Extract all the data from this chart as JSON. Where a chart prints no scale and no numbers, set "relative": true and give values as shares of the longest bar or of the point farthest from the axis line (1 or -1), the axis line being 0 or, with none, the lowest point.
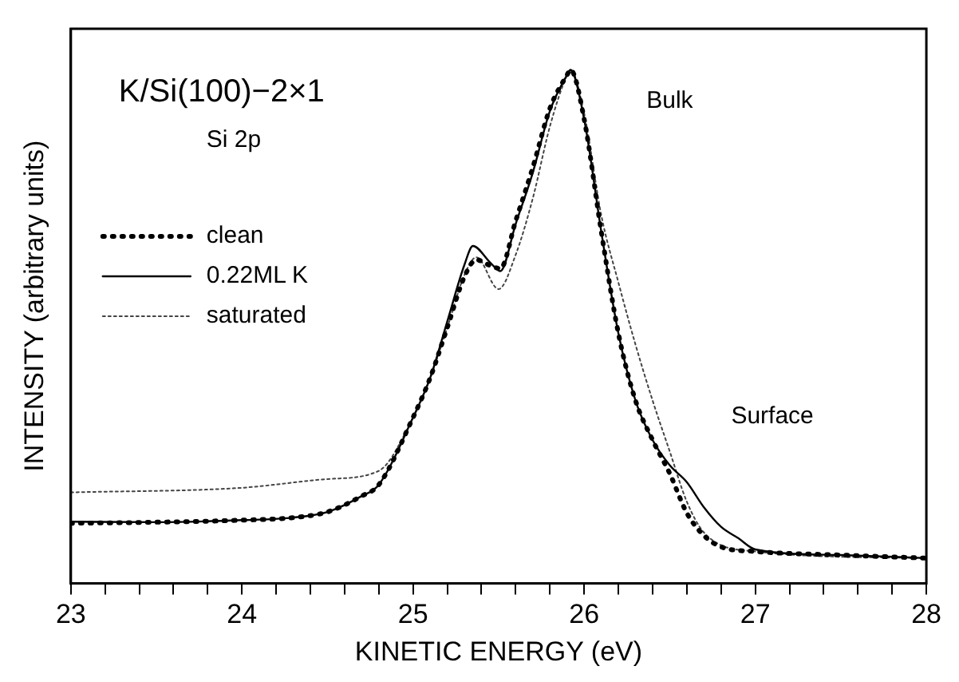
{
  "chart_data": {
    "type": "line",
    "title": "K/Si(100)−2×1",
    "subtitle": "Si 2p",
    "xlabel": "KINETIC ENERGY (eV)",
    "ylabel": "INTENSITY (arbitrary units)",
    "relative": true,
    "annotations": [
      "Bulk",
      "Surface"
    ],
    "xlim": [
      23,
      28
    ],
    "xticks": [
      23,
      {
        "value": 23.2,
        "label": null
      },
      {
        "value": 23.4,
        "label": null
      },
      {
        "value": 23.6,
        "label": null
      },
      {
        "value": 23.8,
        "label": null
      },
      24,
      {
        "value": 24.2,
        "label": null
      },
      {
        "value": 24.4,
        "label": null
      },
      {
        "value": 24.6,
        "label": null
      },
      {
        "value": 24.8,
        "label": null
      },
      25,
      {
        "value": 25.2,
        "label": null
      },
      {
        "value": 25.4,
        "label": null
      },
      {
        "value": 25.6,
        "label": null
      },
      {
        "value": 25.8,
        "label": null
      },
      26,
      {
        "value": 26.2,
        "label": null
      },
      {
        "value": 26.4,
        "label": null
      },
      {
        "value": 26.6,
        "label": null
      },
      {
        "value": 26.8,
        "label": null
      },
      27,
      {
        "value": 27.2,
        "label": null
      },
      {
        "value": 27.4,
        "label": null
      },
      {
        "value": 27.6,
        "label": null
      },
      {
        "value": 27.8,
        "label": null
      },
      28
    ],
    "grid": false,
    "legend": "top left",
    "marker": "none",
    "tick_labels": "x",
    "series": [
      {
        "name": "clean",
        "color": "#000000",
        "line_style": "dotted",
        "x": [
          23,
          23.5,
          24,
          24.3,
          24.5,
          24.7,
          24.8,
          25,
          25.1,
          25.2,
          25.3,
          25.37,
          25.45,
          25.51,
          25.6,
          25.7,
          25.8,
          25.9,
          25.92,
          26,
          26.1,
          26.2,
          26.3,
          26.4,
          26.5,
          26.6,
          26.7,
          26.8,
          27,
          27.5,
          28
        ],
        "values": [
          0.117,
          0.119,
          0.123,
          0.128,
          0.139,
          0.17,
          0.192,
          0.323,
          0.4,
          0.498,
          0.597,
          0.63,
          0.619,
          0.613,
          0.706,
          0.81,
          0.925,
          0.99,
          1,
          0.904,
          0.685,
          0.487,
          0.356,
          0.279,
          0.214,
          0.137,
          0.093,
          0.071,
          0.062,
          0.055,
          0.049
        ]
      },
      {
        "name": "0.22ML K",
        "color": "#000000",
        "line_style": "solid",
        "x": [
          23,
          23.5,
          24,
          24.3,
          24.5,
          24.7,
          24.8,
          25,
          25.1,
          25.2,
          25.3,
          25.35,
          25.45,
          25.51,
          25.6,
          25.7,
          25.8,
          25.9,
          25.92,
          26,
          26.1,
          26.2,
          26.3,
          26.4,
          26.5,
          26.6,
          26.7,
          26.8,
          26.9,
          27,
          27.5,
          28
        ],
        "values": [
          0.12,
          0.119,
          0.123,
          0.128,
          0.139,
          0.17,
          0.192,
          0.323,
          0.4,
          0.51,
          0.62,
          0.657,
          0.625,
          0.608,
          0.7,
          0.8,
          0.92,
          0.99,
          1,
          0.904,
          0.685,
          0.487,
          0.356,
          0.279,
          0.23,
          0.197,
          0.148,
          0.11,
          0.088,
          0.066,
          0.055,
          0.049
        ]
      },
      {
        "name": "saturated",
        "color": "#444444",
        "line_style": "dotted",
        "x": [
          23,
          24,
          24.5,
          24.8,
          25,
          25.1,
          25.2,
          25.3,
          25.37,
          25.5,
          25.6,
          25.7,
          25.8,
          25.9,
          25.92,
          26,
          26.1,
          26.2,
          26.3,
          26.4,
          26.5,
          26.6,
          26.7,
          27,
          28
        ],
        "values": [
          0.177,
          0.186,
          0.203,
          0.219,
          0.323,
          0.4,
          0.498,
          0.6,
          0.635,
          0.573,
          0.64,
          0.75,
          0.89,
          0.99,
          1,
          0.915,
          0.717,
          0.586,
          0.465,
          0.356,
          0.257,
          0.159,
          0.099,
          0.062,
          0.049
        ]
      }
    ]
  }
}
